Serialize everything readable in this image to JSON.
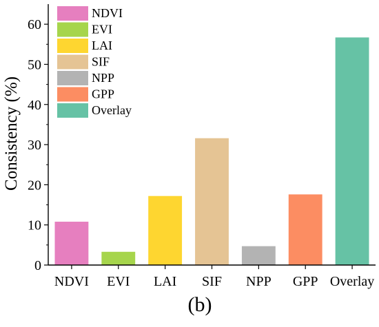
{
  "chart_data": {
    "type": "bar",
    "categories": [
      "NDVI",
      "EVI",
      "LAI",
      "SIF",
      "NPP",
      "GPP",
      "Overlay"
    ],
    "values": [
      10.8,
      3.3,
      17.2,
      31.6,
      4.7,
      17.6,
      56.7
    ],
    "colors": [
      "#E67FBF",
      "#A6D54C",
      "#FED630",
      "#E5C494",
      "#B3B3B3",
      "#FC8D62",
      "#66C2A5"
    ],
    "title": "",
    "xlabel": "",
    "ylabel": "Consistency (%)",
    "ylim": [
      0,
      65
    ],
    "yticks": [
      0,
      10,
      20,
      30,
      40,
      50,
      60
    ],
    "grid": false,
    "legend": {
      "placement": "top-left",
      "entries": [
        "NDVI",
        "EVI",
        "LAI",
        "SIF",
        "NPP",
        "GPP",
        "Overlay"
      ]
    },
    "panel_label": "(b)"
  }
}
